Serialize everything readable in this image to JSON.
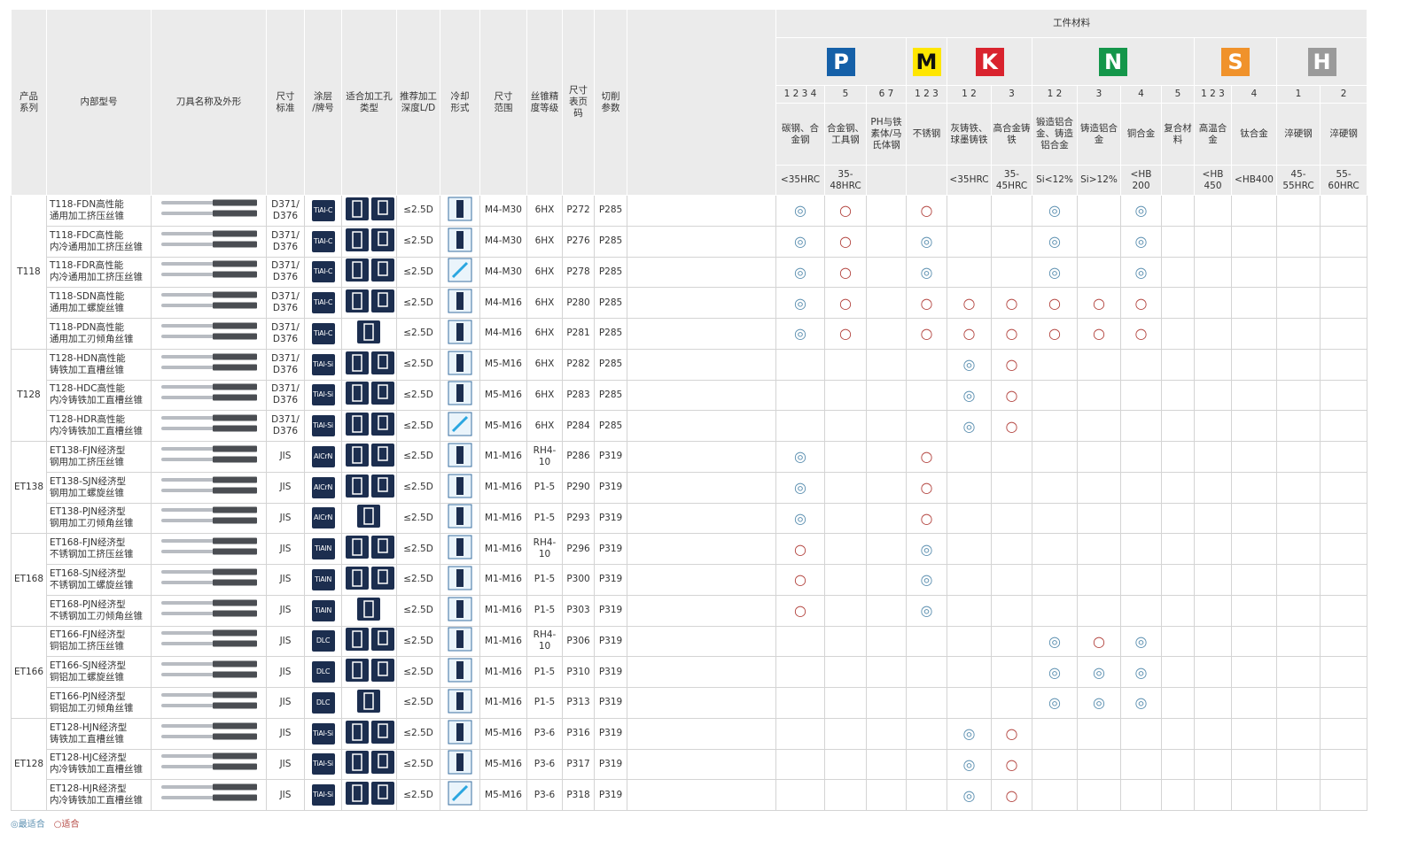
{
  "header": {
    "left": [
      [
        "产品",
        "系列"
      ],
      [
        "内部型号"
      ],
      [
        "刀具名称及外形"
      ],
      [
        "尺寸",
        "标准"
      ],
      [
        "涂层",
        "/牌号"
      ],
      [
        "适合加工孔",
        "类型"
      ],
      [
        "推荐加工",
        "深度L/D"
      ],
      [
        "冷却",
        "形式"
      ],
      [
        "尺寸",
        "范围"
      ],
      [
        "丝锥精",
        "度等级"
      ],
      [
        "尺寸",
        "表页",
        "码"
      ],
      [
        "切削",
        "参数"
      ]
    ],
    "material": "工件材料"
  },
  "groups": [
    {
      "letter": "P",
      "color": "#1560a8",
      "text_color": "#ffffff"
    },
    {
      "letter": "M",
      "color": "#ffe600",
      "text_color": "#111111"
    },
    {
      "letter": "K",
      "color": "#d9232e",
      "text_color": "#ffffff"
    },
    {
      "letter": "N",
      "color": "#14964a",
      "text_color": "#ffffff"
    },
    {
      "letter": "S",
      "color": "#f0922b",
      "text_color": "#ffffff"
    },
    {
      "letter": "H",
      "color": "#9a9a9a",
      "text_color": "#ffffff"
    }
  ],
  "columns": [
    {
      "num": "1 2 3 4",
      "name": "碳钢、合金钢",
      "hardness": "<35HRC"
    },
    {
      "num": "5",
      "name": "合金钢、工具钢",
      "hardness": "35-48HRC"
    },
    {
      "num": "6 7",
      "name": "PH与铁素体/马氏体钢",
      "hardness": null
    },
    {
      "num": "1 2 3",
      "name": "不锈钢",
      "hardness": null
    },
    {
      "num": "1 2",
      "name": "灰铸铁、球墨铸铁",
      "hardness": "<35HRC"
    },
    {
      "num": "3",
      "name": "高合金铸铁",
      "hardness": "35-45HRC"
    },
    {
      "num": "1 2",
      "name": "锻造铝合金、铸造铝合金",
      "hardness": "Si<12%"
    },
    {
      "num": "3",
      "name": "铸造铝合金",
      "hardness": "Si>12%"
    },
    {
      "num": "4",
      "name": "铜合金",
      "hardness": "<HB 200"
    },
    {
      "num": "5",
      "name": "复合材料",
      "hardness": null
    },
    {
      "num": "1 2 3",
      "name": "高温合金",
      "hardness": "<HB 450"
    },
    {
      "num": "4",
      "name": "钛合金",
      "hardness": "<HB400"
    },
    {
      "num": "1",
      "name": "淬硬钢",
      "hardness": "45-55HRC"
    },
    {
      "num": "2",
      "name": "淬硬钢",
      "hardness": "55-60HRC"
    }
  ],
  "series": [
    {
      "name": "T118",
      "items": [
        {
          "model": [
            "T118-FDN高性能",
            "通用加工挤压丝锥"
          ],
          "std": [
            "D371/",
            "D376"
          ],
          "coating": "TiAl-C",
          "depth": "≤2.5D",
          "range": "M4-M30",
          "precision": "6HX",
          "page": "P272",
          "cutting": "P285",
          "marks": [
            "◎",
            "○",
            null,
            "○",
            null,
            null,
            "◎",
            null,
            "◎",
            null,
            null,
            null,
            null,
            null
          ]
        },
        {
          "model": [
            "T118-FDC高性能",
            "内冷通用加工挤压丝锥"
          ],
          "std": [
            "D371/",
            "D376"
          ],
          "coating": "TiAl-C",
          "depth": "≤2.5D",
          "range": "M4-M30",
          "precision": "6HX",
          "page": "P276",
          "cutting": "P285",
          "marks": [
            "◎",
            "○",
            null,
            "◎",
            null,
            null,
            "◎",
            null,
            "◎",
            null,
            null,
            null,
            null,
            null
          ]
        },
        {
          "model": [
            "T118-FDR高性能",
            "内冷通用加工挤压丝锥"
          ],
          "std": [
            "D371/",
            "D376"
          ],
          "coating": "TiAl-C",
          "depth": "≤2.5D",
          "range": "M4-M30",
          "precision": "6HX",
          "page": "P278",
          "cutting": "P285",
          "marks": [
            "◎",
            "○",
            null,
            "◎",
            null,
            null,
            "◎",
            null,
            "◎",
            null,
            null,
            null,
            null,
            null
          ]
        },
        {
          "model": [
            "T118-SDN高性能",
            "通用加工螺旋丝锥"
          ],
          "std": [
            "D371/",
            "D376"
          ],
          "coating": "TiAl-C",
          "depth": "≤2.5D",
          "range": "M4-M16",
          "precision": "6HX",
          "page": "P280",
          "cutting": "P285",
          "marks": [
            "◎",
            "○",
            null,
            "○",
            "○",
            "○",
            "○",
            "○",
            "○",
            null,
            null,
            null,
            null,
            null
          ]
        },
        {
          "model": [
            "T118-PDN高性能",
            "通用加工刃倾角丝锥"
          ],
          "std": [
            "D371/",
            "D376"
          ],
          "coating": "TiAl-C",
          "depth": "≤2.5D",
          "range": "M4-M16",
          "precision": "6HX",
          "page": "P281",
          "cutting": "P285",
          "marks": [
            "◎",
            "○",
            null,
            "○",
            "○",
            "○",
            "○",
            "○",
            "○",
            null,
            null,
            null,
            null,
            null
          ]
        }
      ]
    },
    {
      "name": "T128",
      "items": [
        {
          "model": [
            "T128-HDN高性能",
            "铸铁加工直槽丝锥"
          ],
          "std": [
            "D371/",
            "D376"
          ],
          "coating": "TiAl-Si",
          "depth": "≤2.5D",
          "range": "M5-M16",
          "precision": "6HX",
          "page": "P282",
          "cutting": "P285",
          "marks": [
            null,
            null,
            null,
            null,
            "◎",
            "○",
            null,
            null,
            null,
            null,
            null,
            null,
            null,
            null
          ]
        },
        {
          "model": [
            "T128-HDC高性能",
            "内冷铸铁加工直槽丝锥"
          ],
          "std": [
            "D371/",
            "D376"
          ],
          "coating": "TiAl-Si",
          "depth": "≤2.5D",
          "range": "M5-M16",
          "precision": "6HX",
          "page": "P283",
          "cutting": "P285",
          "marks": [
            null,
            null,
            null,
            null,
            "◎",
            "○",
            null,
            null,
            null,
            null,
            null,
            null,
            null,
            null
          ]
        },
        {
          "model": [
            "T128-HDR高性能",
            "内冷铸铁加工直槽丝锥"
          ],
          "std": [
            "D371/",
            "D376"
          ],
          "coating": "TiAl-Si",
          "depth": "≤2.5D",
          "range": "M5-M16",
          "precision": "6HX",
          "page": "P284",
          "cutting": "P285",
          "marks": [
            null,
            null,
            null,
            null,
            "◎",
            "○",
            null,
            null,
            null,
            null,
            null,
            null,
            null,
            null
          ]
        }
      ]
    },
    {
      "name": "ET138",
      "items": [
        {
          "model": [
            "ET138-FJN经济型",
            "钢用加工挤压丝锥"
          ],
          "std": [
            "JIS"
          ],
          "coating": "AlCrN",
          "depth": "≤2.5D",
          "range": "M1-M16",
          "precision": "RH4-10",
          "page": "P286",
          "cutting": "P319",
          "marks": [
            "◎",
            null,
            null,
            "○",
            null,
            null,
            null,
            null,
            null,
            null,
            null,
            null,
            null,
            null
          ]
        },
        {
          "model": [
            "ET138-SJN经济型",
            "钢用加工螺旋丝锥"
          ],
          "std": [
            "JIS"
          ],
          "coating": "AlCrN",
          "depth": "≤2.5D",
          "range": "M1-M16",
          "precision": "P1-5",
          "page": "P290",
          "cutting": "P319",
          "marks": [
            "◎",
            null,
            null,
            "○",
            null,
            null,
            null,
            null,
            null,
            null,
            null,
            null,
            null,
            null
          ]
        },
        {
          "model": [
            "ET138-PJN经济型",
            "钢用加工刃倾角丝锥"
          ],
          "std": [
            "JIS"
          ],
          "coating": "AlCrN",
          "depth": "≤2.5D",
          "range": "M1-M16",
          "precision": "P1-5",
          "page": "P293",
          "cutting": "P319",
          "marks": [
            "◎",
            null,
            null,
            "○",
            null,
            null,
            null,
            null,
            null,
            null,
            null,
            null,
            null,
            null
          ]
        }
      ]
    },
    {
      "name": "ET168",
      "items": [
        {
          "model": [
            "ET168-FJN经济型",
            "不锈钢加工挤压丝锥"
          ],
          "std": [
            "JIS"
          ],
          "coating": "TiAlN",
          "depth": "≤2.5D",
          "range": "M1-M16",
          "precision": "RH4-10",
          "page": "P296",
          "cutting": "P319",
          "marks": [
            "○",
            null,
            null,
            "◎",
            null,
            null,
            null,
            null,
            null,
            null,
            null,
            null,
            null,
            null
          ]
        },
        {
          "model": [
            "ET168-SJN经济型",
            "不锈钢加工螺旋丝锥"
          ],
          "std": [
            "JIS"
          ],
          "coating": "TiAlN",
          "depth": "≤2.5D",
          "range": "M1-M16",
          "precision": "P1-5",
          "page": "P300",
          "cutting": "P319",
          "marks": [
            "○",
            null,
            null,
            "◎",
            null,
            null,
            null,
            null,
            null,
            null,
            null,
            null,
            null,
            null
          ]
        },
        {
          "model": [
            "ET168-PJN经济型",
            "不锈钢加工刃倾角丝锥"
          ],
          "std": [
            "JIS"
          ],
          "coating": "TiAlN",
          "depth": "≤2.5D",
          "range": "M1-M16",
          "precision": "P1-5",
          "page": "P303",
          "cutting": "P319",
          "marks": [
            "○",
            null,
            null,
            "◎",
            null,
            null,
            null,
            null,
            null,
            null,
            null,
            null,
            null,
            null
          ]
        }
      ]
    },
    {
      "name": "ET166",
      "items": [
        {
          "model": [
            "ET166-FJN经济型",
            "铜铝加工挤压丝锥"
          ],
          "std": [
            "JIS"
          ],
          "coating": "DLC",
          "depth": "≤2.5D",
          "range": "M1-M16",
          "precision": "RH4-10",
          "page": "P306",
          "cutting": "P319",
          "marks": [
            null,
            null,
            null,
            null,
            null,
            null,
            "◎",
            "○",
            "◎",
            null,
            null,
            null,
            null,
            null
          ]
        },
        {
          "model": [
            "ET166-SJN经济型",
            "铜铝加工螺旋丝锥"
          ],
          "std": [
            "JIS"
          ],
          "coating": "DLC",
          "depth": "≤2.5D",
          "range": "M1-M16",
          "precision": "P1-5",
          "page": "P310",
          "cutting": "P319",
          "marks": [
            null,
            null,
            null,
            null,
            null,
            null,
            "◎",
            "◎",
            "◎",
            null,
            null,
            null,
            null,
            null
          ]
        },
        {
          "model": [
            "ET166-PJN经济型",
            "铜铝加工刃倾角丝锥"
          ],
          "std": [
            "JIS"
          ],
          "coating": "DLC",
          "depth": "≤2.5D",
          "range": "M1-M16",
          "precision": "P1-5",
          "page": "P313",
          "cutting": "P319",
          "marks": [
            null,
            null,
            null,
            null,
            null,
            null,
            "◎",
            "◎",
            "◎",
            null,
            null,
            null,
            null,
            null
          ]
        }
      ]
    },
    {
      "name": "ET128",
      "items": [
        {
          "model": [
            "ET128-HJN经济型",
            "铸铁加工直槽丝锥"
          ],
          "std": [
            "JIS"
          ],
          "coating": "TiAl-Si",
          "depth": "≤2.5D",
          "range": "M5-M16",
          "precision": "P3-6",
          "page": "P316",
          "cutting": "P319",
          "marks": [
            null,
            null,
            null,
            null,
            "◎",
            "○",
            null,
            null,
            null,
            null,
            null,
            null,
            null,
            null
          ]
        },
        {
          "model": [
            "ET128-HJC经济型",
            "内冷铸铁加工直槽丝锥"
          ],
          "std": [
            "JIS"
          ],
          "coating": "TiAl-Si",
          "depth": "≤2.5D",
          "range": "M5-M16",
          "precision": "P3-6",
          "page": "P317",
          "cutting": "P319",
          "marks": [
            null,
            null,
            null,
            null,
            "◎",
            "○",
            null,
            null,
            null,
            null,
            null,
            null,
            null,
            null
          ]
        },
        {
          "model": [
            "ET128-HJR经济型",
            "内冷铸铁加工直槽丝锥"
          ],
          "std": [
            "JIS"
          ],
          "coating": "TiAl-Si",
          "depth": "≤2.5D",
          "range": "M5-M16",
          "precision": "P3-6",
          "page": "P318",
          "cutting": "P319",
          "marks": [
            null,
            null,
            null,
            null,
            "◎",
            "○",
            null,
            null,
            null,
            null,
            null,
            null,
            null,
            null
          ]
        }
      ]
    }
  ],
  "legend": {
    "best": "◎最适合",
    "good": "○适合"
  }
}
